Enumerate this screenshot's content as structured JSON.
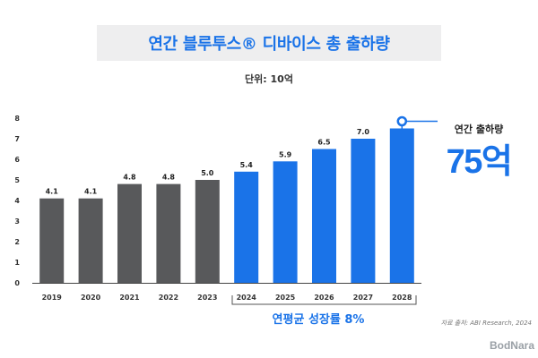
{
  "header": {
    "title": "연간 블루투스® 디바이스 총 출하량"
  },
  "unit_label": "단위: 10억",
  "callout": {
    "label": "연간 출하량",
    "value": "75억"
  },
  "growth_label": "연평균 성장률 8%",
  "source": "자료 출처: ABI Research, 2024",
  "brand": "BodNara",
  "colors": {
    "historical": "#58595b",
    "forecast": "#1a73e8",
    "title": "#1a73e8"
  },
  "chart_data": {
    "type": "bar",
    "title": "연간 블루투스® 디바이스 총 출하량",
    "xlabel": "",
    "ylabel": "",
    "ylim": [
      0,
      8
    ],
    "yticks": [
      0,
      1,
      2,
      3,
      4,
      5,
      6,
      7,
      8
    ],
    "categories": [
      "2019",
      "2020",
      "2021",
      "2022",
      "2023",
      "2024",
      "2025",
      "2026",
      "2027",
      "2028"
    ],
    "values": [
      4.1,
      4.1,
      4.8,
      4.8,
      5.0,
      5.4,
      5.9,
      6.5,
      7.0,
      7.5
    ],
    "data_labels": [
      "4.1",
      "4.1",
      "4.8",
      "4.8",
      "5.0",
      "5.4",
      "5.9",
      "6.5",
      "7.0",
      ""
    ],
    "forecast_start_index": 5,
    "grid": false,
    "legend": "none"
  }
}
